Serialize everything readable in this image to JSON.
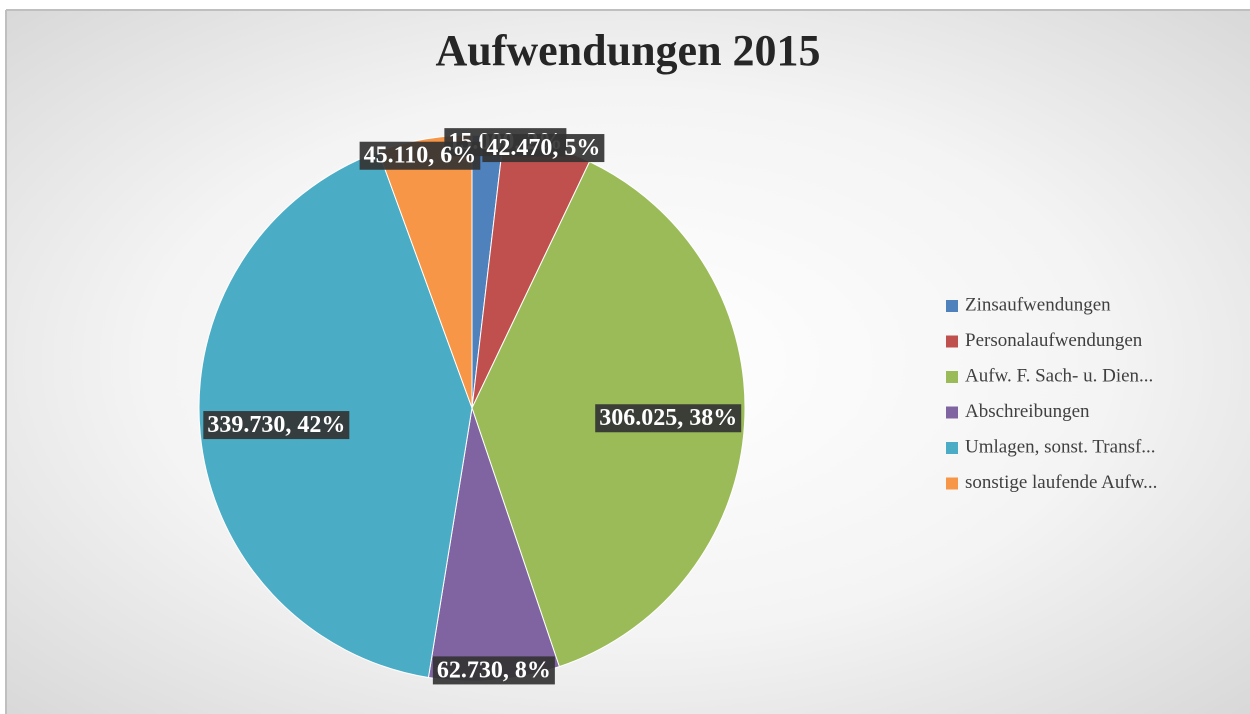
{
  "chart_data": {
    "type": "pie",
    "title": "Aufwendungen 2015",
    "categories": [
      "Zinsaufwendungen",
      "Personalaufwendungen",
      "Aufw. F. Sach- u. Dien...",
      "Abschreibungen",
      "Umlagen, sonst. Transf...",
      "sonstige laufende Aufw..."
    ],
    "values": [
      15000,
      42470,
      306025,
      62730,
      339730,
      45110
    ],
    "value_labels": [
      "15.000, 2%",
      "42.470, 5%",
      "306.025, 38%",
      "62.730, 8%",
      "339.730, 42%",
      "45.110, 6%"
    ],
    "colors": [
      "#4f81bd",
      "#c0504d",
      "#9bbb59",
      "#8064a2",
      "#4bacc6",
      "#f79646"
    ],
    "legend": "right"
  }
}
